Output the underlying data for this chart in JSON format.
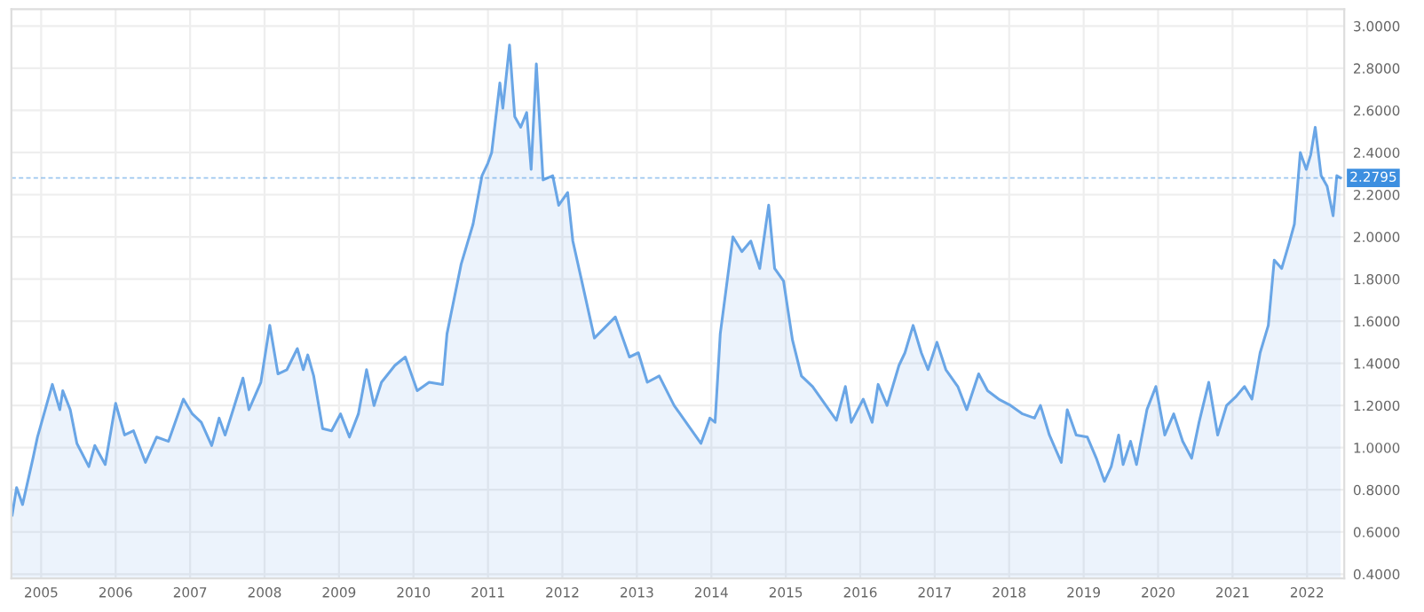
{
  "chart_data": {
    "type": "area",
    "x": [
      2004.61,
      2004.67,
      2004.75,
      2004.89,
      2004.95,
      2005.15,
      2005.25,
      2005.29,
      2005.39,
      2005.48,
      2005.64,
      2005.72,
      2005.86,
      2006.0,
      2006.12,
      2006.24,
      2006.4,
      2006.55,
      2006.71,
      2006.91,
      2007.03,
      2007.15,
      2007.29,
      2007.39,
      2007.47,
      2007.56,
      2007.71,
      2007.79,
      2007.95,
      2008.07,
      2008.18,
      2008.3,
      2008.44,
      2008.52,
      2008.58,
      2008.66,
      2008.78,
      2008.9,
      2009.02,
      2009.14,
      2009.26,
      2009.37,
      2009.47,
      2009.57,
      2009.75,
      2009.89,
      2010.05,
      2010.21,
      2010.39,
      2010.45,
      2010.64,
      2010.8,
      2010.92,
      2011.0,
      2011.05,
      2011.16,
      2011.2,
      2011.29,
      2011.36,
      2011.44,
      2011.52,
      2011.58,
      2011.65,
      2011.74,
      2011.87,
      2011.95,
      2012.07,
      2012.14,
      2012.26,
      2012.43,
      2012.71,
      2012.9,
      2013.02,
      2013.14,
      2013.3,
      2013.5,
      2013.7,
      2013.86,
      2013.98,
      2014.05,
      2014.12,
      2014.29,
      2014.41,
      2014.53,
      2014.65,
      2014.77,
      2014.85,
      2014.97,
      2015.09,
      2015.21,
      2015.36,
      2015.48,
      2015.68,
      2015.8,
      2015.88,
      2016.04,
      2016.16,
      2016.24,
      2016.36,
      2016.52,
      2016.6,
      2016.71,
      2016.82,
      2016.91,
      2017.03,
      2017.15,
      2017.31,
      2017.43,
      2017.59,
      2017.71,
      2017.86,
      2018.02,
      2018.18,
      2018.34,
      2018.42,
      2018.54,
      2018.7,
      2018.78,
      2018.9,
      2019.05,
      2019.17,
      2019.28,
      2019.37,
      2019.47,
      2019.53,
      2019.63,
      2019.71,
      2019.85,
      2019.97,
      2020.09,
      2020.21,
      2020.33,
      2020.45,
      2020.55,
      2020.68,
      2020.8,
      2020.92,
      2021.04,
      2021.16,
      2021.26,
      2021.37,
      2021.48,
      2021.56,
      2021.66,
      2021.76,
      2021.83,
      2021.91,
      2021.99,
      2022.05,
      2022.11,
      2022.19,
      2022.27,
      2022.35,
      2022.4,
      2022.45
    ],
    "series": [
      {
        "color": "#6aa6e6",
        "values": [
          0.68,
          0.81,
          0.73,
          0.95,
          1.05,
          1.3,
          1.18,
          1.27,
          1.18,
          1.02,
          0.91,
          1.01,
          0.92,
          1.21,
          1.06,
          1.08,
          0.93,
          1.05,
          1.03,
          1.23,
          1.16,
          1.12,
          1.01,
          1.14,
          1.06,
          1.16,
          1.33,
          1.18,
          1.31,
          1.58,
          1.35,
          1.37,
          1.47,
          1.37,
          1.44,
          1.34,
          1.09,
          1.08,
          1.16,
          1.05,
          1.16,
          1.37,
          1.2,
          1.31,
          1.39,
          1.43,
          1.27,
          1.31,
          1.3,
          1.54,
          1.87,
          2.06,
          2.29,
          2.35,
          2.4,
          2.73,
          2.61,
          2.91,
          2.57,
          2.52,
          2.59,
          2.32,
          2.82,
          2.27,
          2.29,
          2.15,
          2.21,
          1.98,
          1.79,
          1.52,
          1.62,
          1.43,
          1.45,
          1.31,
          1.34,
          1.2,
          1.1,
          1.02,
          1.14,
          1.12,
          1.54,
          2.0,
          1.93,
          1.98,
          1.85,
          2.15,
          1.85,
          1.79,
          1.51,
          1.34,
          1.29,
          1.23,
          1.13,
          1.29,
          1.12,
          1.23,
          1.12,
          1.3,
          1.2,
          1.39,
          1.45,
          1.58,
          1.45,
          1.37,
          1.5,
          1.37,
          1.29,
          1.18,
          1.35,
          1.27,
          1.23,
          1.2,
          1.16,
          1.14,
          1.2,
          1.06,
          0.93,
          1.18,
          1.06,
          1.05,
          0.95,
          0.84,
          0.91,
          1.06,
          0.92,
          1.03,
          0.92,
          1.18,
          1.29,
          1.06,
          1.16,
          1.03,
          0.95,
          1.12,
          1.31,
          1.06,
          1.2,
          1.24,
          1.29,
          1.23,
          1.45,
          1.58,
          1.89,
          1.85,
          1.97,
          2.06,
          2.4,
          2.32,
          2.39,
          2.52,
          2.29,
          2.24,
          2.1,
          2.29,
          2.28
        ]
      }
    ],
    "xlim": [
      2004.6,
      2022.5
    ],
    "ylim": [
      0.38,
      3.08
    ],
    "xticks": [
      2005,
      2006,
      2007,
      2008,
      2009,
      2010,
      2011,
      2012,
      2013,
      2014,
      2015,
      2016,
      2017,
      2018,
      2019,
      2020,
      2021,
      2022
    ],
    "yticks": [
      {
        "value": 0.4,
        "label": "0.4000"
      },
      {
        "value": 0.6,
        "label": "0.6000"
      },
      {
        "value": 0.8,
        "label": "0.8000"
      },
      {
        "value": 1.0,
        "label": "1.0000"
      },
      {
        "value": 1.2,
        "label": "1.2000"
      },
      {
        "value": 1.4,
        "label": "1.4000"
      },
      {
        "value": 1.6,
        "label": "1.6000"
      },
      {
        "value": 1.8,
        "label": "1.8000"
      },
      {
        "value": 2.0,
        "label": "2.0000"
      },
      {
        "value": 2.2,
        "label": "2.2000"
      },
      {
        "value": 2.4,
        "label": "2.4000"
      },
      {
        "value": 2.6,
        "label": "2.6000"
      },
      {
        "value": 2.8,
        "label": "2.8000"
      },
      {
        "value": 3.0,
        "label": "3.0000"
      }
    ],
    "ref_lines": [
      {
        "axis": "y",
        "value": 2.2795,
        "label": "2.2795",
        "color": "#3d8fe0",
        "line_style": "dashed"
      }
    ],
    "grid": true
  }
}
